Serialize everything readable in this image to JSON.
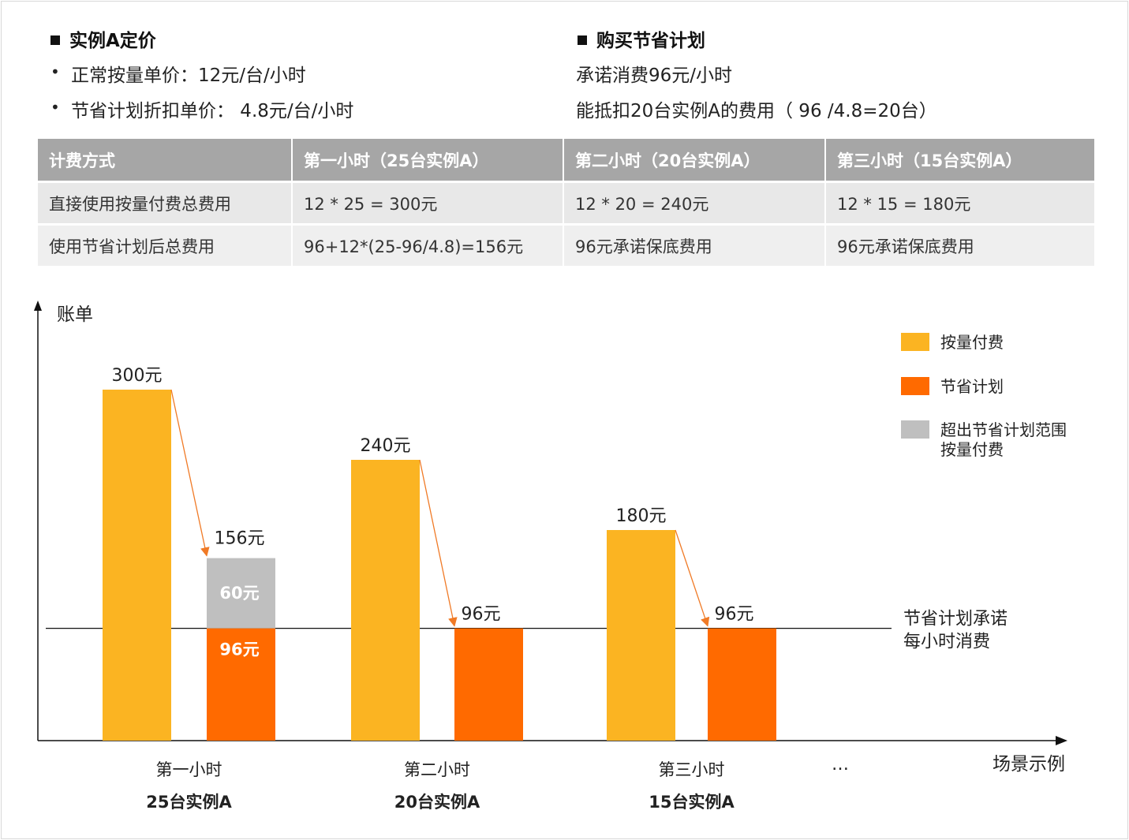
{
  "pricing": {
    "heading": "实例A定价",
    "bullets": [
      "正常按量单价：12元/台/小时",
      "节省计划折扣单价： 4.8元/台/小时"
    ]
  },
  "plan": {
    "heading": "购买节省计划",
    "line1": "承诺消费96元/小时",
    "line2": "能抵扣20台实例A的费用（ 96 /4.8=20台）"
  },
  "table": {
    "headers": [
      "计费方式",
      "第一小时（25台实例A）",
      "第二小时（20台实例A）",
      "第三小时（15台实例A）"
    ],
    "rows": [
      [
        "直接使用按量付费总费用",
        "12 * 25 = 300元",
        "12 * 20 = 240元",
        "12 * 15 = 180元"
      ],
      [
        "使用节省计划后总费用",
        "96+12*(25-96/4.8)=156元",
        "96元承诺保底费用",
        "96元承诺保底费用"
      ]
    ]
  },
  "chart_data": {
    "type": "bar",
    "ylabel": "账单",
    "xlabel": "场景示例",
    "categories": [
      {
        "line1": "第一小时",
        "line2": "25台实例A"
      },
      {
        "line1": "第二小时",
        "line2": "20台实例A"
      },
      {
        "line1": "第三小时",
        "line2": "15台实例A"
      }
    ],
    "ellipsis": "…",
    "series": [
      {
        "name": "按量付费",
        "values": [
          300,
          240,
          180
        ],
        "labels": [
          "300元",
          "240元",
          "180元"
        ]
      },
      {
        "name": "节省计划",
        "values": [
          96,
          96,
          96
        ],
        "labels": [
          "96元",
          "96元",
          "96元"
        ]
      },
      {
        "name": "超出节省计划范围\n按量付费",
        "values": [
          60,
          0,
          0
        ],
        "labels": [
          "60元",
          "",
          ""
        ]
      }
    ],
    "total_labels": [
      "156元",
      "",
      ""
    ],
    "commitment": {
      "value": 96,
      "label": "节省计划承诺\n每小时消费"
    },
    "colors": {
      "按量付费": "#fbb422",
      "节省计划": "#ff6a00",
      "超出": "#bfbfbf",
      "arrow": "#f07a26"
    }
  }
}
